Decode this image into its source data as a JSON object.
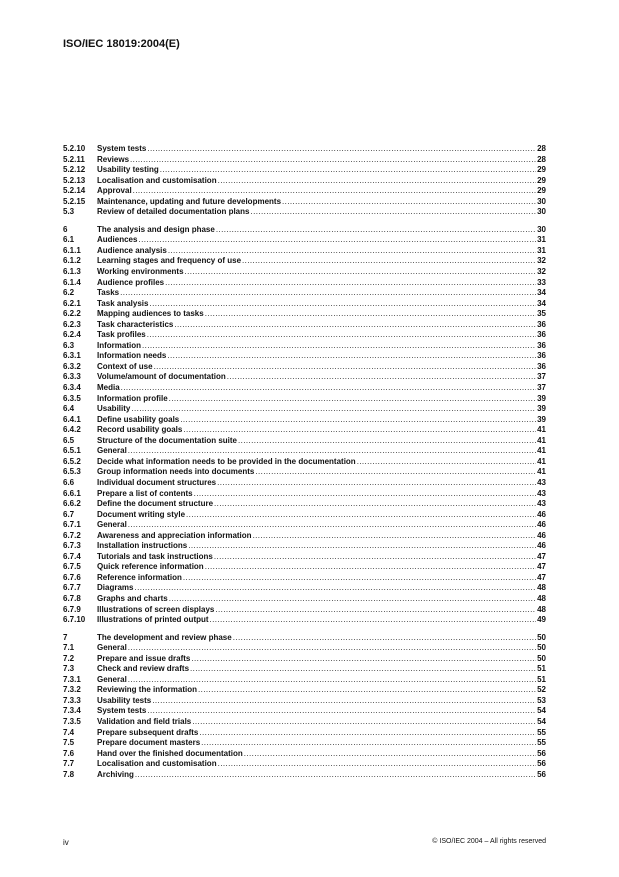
{
  "header": {
    "title": "ISO/IEC 18019:2004(E)"
  },
  "toc": [
    [
      {
        "num": "5.2.10",
        "title": "System tests",
        "page": "28"
      },
      {
        "num": "5.2.11",
        "title": "Reviews",
        "page": "28"
      },
      {
        "num": "5.2.12",
        "title": "Usability testing",
        "page": "29"
      },
      {
        "num": "5.2.13",
        "title": "Localisation and customisation",
        "page": "29"
      },
      {
        "num": "5.2.14",
        "title": "Approval",
        "page": "29"
      },
      {
        "num": "5.2.15",
        "title": "Maintenance, updating and future developments",
        "page": "30"
      },
      {
        "num": "5.3",
        "title": "Review of detailed documentation plans",
        "page": "30"
      }
    ],
    [
      {
        "num": "6",
        "title": "The analysis and design phase",
        "page": "30"
      },
      {
        "num": "6.1",
        "title": "Audiences",
        "page": "31"
      },
      {
        "num": "6.1.1",
        "title": "Audience analysis",
        "page": "31"
      },
      {
        "num": "6.1.2",
        "title": "Learning stages and frequency of use",
        "page": "32"
      },
      {
        "num": "6.1.3",
        "title": "Working environments",
        "page": "32"
      },
      {
        "num": "6.1.4",
        "title": "Audience profiles",
        "page": "33"
      },
      {
        "num": "6.2",
        "title": "Tasks",
        "page": "34"
      },
      {
        "num": "6.2.1",
        "title": "Task analysis",
        "page": "34"
      },
      {
        "num": "6.2.2",
        "title": "Mapping audiences to tasks",
        "page": "35"
      },
      {
        "num": "6.2.3",
        "title": "Task characteristics",
        "page": "36"
      },
      {
        "num": "6.2.4",
        "title": "Task profiles",
        "page": "36"
      },
      {
        "num": "6.3",
        "title": "Information",
        "page": "36"
      },
      {
        "num": "6.3.1",
        "title": "Information needs",
        "page": "36"
      },
      {
        "num": "6.3.2",
        "title": "Context of use",
        "page": "36"
      },
      {
        "num": "6.3.3",
        "title": "Volume/amount of documentation",
        "page": "37"
      },
      {
        "num": "6.3.4",
        "title": "Media",
        "page": "37"
      },
      {
        "num": "6.3.5",
        "title": "Information profile",
        "page": "39"
      },
      {
        "num": "6.4",
        "title": "Usability",
        "page": "39"
      },
      {
        "num": "6.4.1",
        "title": "Define usability goals",
        "page": "39"
      },
      {
        "num": "6.4.2",
        "title": "Record usability goals",
        "page": "41"
      },
      {
        "num": "6.5",
        "title": "Structure of the documentation suite",
        "page": "41"
      },
      {
        "num": "6.5.1",
        "title": "General",
        "page": "41"
      },
      {
        "num": "6.5.2",
        "title": "Decide what information needs to be provided in the documentation",
        "page": "41"
      },
      {
        "num": "6.5.3",
        "title": "Group information needs into documents",
        "page": "41"
      },
      {
        "num": "6.6",
        "title": "Individual document structures",
        "page": "43"
      },
      {
        "num": "6.6.1",
        "title": "Prepare a list of contents",
        "page": "43"
      },
      {
        "num": "6.6.2",
        "title": "Define the document structure",
        "page": "43"
      },
      {
        "num": "6.7",
        "title": "Document writing style",
        "page": "46"
      },
      {
        "num": "6.7.1",
        "title": "General",
        "page": "46"
      },
      {
        "num": "6.7.2",
        "title": "Awareness and appreciation information",
        "page": "46"
      },
      {
        "num": "6.7.3",
        "title": "Installation instructions",
        "page": "46"
      },
      {
        "num": "6.7.4",
        "title": "Tutorials and task instructions",
        "page": "47"
      },
      {
        "num": "6.7.5",
        "title": "Quick reference information",
        "page": "47"
      },
      {
        "num": "6.7.6",
        "title": "Reference information",
        "page": "47"
      },
      {
        "num": "6.7.7",
        "title": "Diagrams",
        "page": "48"
      },
      {
        "num": "6.7.8",
        "title": "Graphs and charts",
        "page": "48"
      },
      {
        "num": "6.7.9",
        "title": "Illustrations of screen displays",
        "page": "48"
      },
      {
        "num": "6.7.10",
        "title": "Illustrations of printed output",
        "page": "49"
      }
    ],
    [
      {
        "num": "7",
        "title": "The development and review phase",
        "page": "50"
      },
      {
        "num": "7.1",
        "title": "General",
        "page": "50"
      },
      {
        "num": "7.2",
        "title": "Prepare and issue drafts",
        "page": "50"
      },
      {
        "num": "7.3",
        "title": "Check and review drafts",
        "page": "51"
      },
      {
        "num": "7.3.1",
        "title": "General",
        "page": "51"
      },
      {
        "num": "7.3.2",
        "title": "Reviewing the information",
        "page": "52"
      },
      {
        "num": "7.3.3",
        "title": "Usability tests",
        "page": "53"
      },
      {
        "num": "7.3.4",
        "title": "System tests",
        "page": "54"
      },
      {
        "num": "7.3.5",
        "title": "Validation and field trials",
        "page": "54"
      },
      {
        "num": "7.4",
        "title": "Prepare subsequent drafts",
        "page": "55"
      },
      {
        "num": "7.5",
        "title": "Prepare document masters",
        "page": "55"
      },
      {
        "num": "7.6",
        "title": "Hand over the finished documentation",
        "page": "56"
      },
      {
        "num": "7.7",
        "title": "Localisation and customisation",
        "page": "56"
      },
      {
        "num": "7.8",
        "title": "Archiving",
        "page": "56"
      }
    ]
  ],
  "footer": {
    "page_number": "iv",
    "copyright": "© ISO/IEC 2004 – All rights reserved"
  }
}
